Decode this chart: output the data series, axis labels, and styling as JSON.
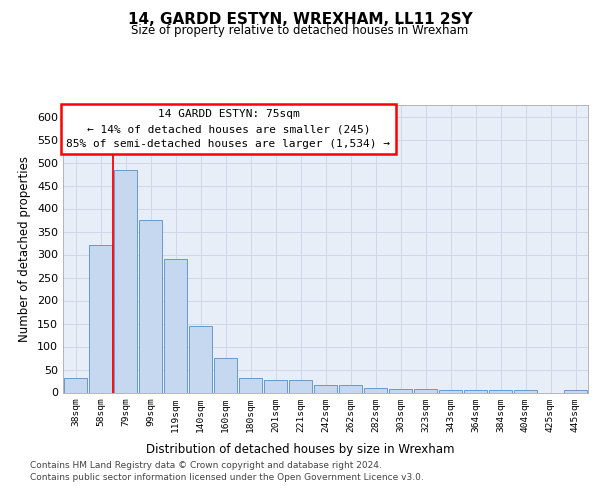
{
  "title": "14, GARDD ESTYN, WREXHAM, LL11 2SY",
  "subtitle": "Size of property relative to detached houses in Wrexham",
  "xlabel": "Distribution of detached houses by size in Wrexham",
  "ylabel": "Number of detached properties",
  "categories": [
    "38sqm",
    "58sqm",
    "79sqm",
    "99sqm",
    "119sqm",
    "140sqm",
    "160sqm",
    "180sqm",
    "201sqm",
    "221sqm",
    "242sqm",
    "262sqm",
    "282sqm",
    "303sqm",
    "323sqm",
    "343sqm",
    "364sqm",
    "384sqm",
    "404sqm",
    "425sqm",
    "445sqm"
  ],
  "values": [
    31,
    320,
    483,
    375,
    290,
    144,
    76,
    31,
    28,
    28,
    16,
    16,
    9,
    7,
    7,
    5,
    5,
    5,
    5,
    0,
    5
  ],
  "bar_color": "#c5d8f0",
  "bar_edge_color": "#6699cc",
  "grid_color": "#d0d8e8",
  "red_line_x": 1.5,
  "annotation_text": "14 GARDD ESTYN: 75sqm\n← 14% of detached houses are smaller (245)\n85% of semi-detached houses are larger (1,534) →",
  "ylim": [
    0,
    625
  ],
  "yticks": [
    0,
    50,
    100,
    150,
    200,
    250,
    300,
    350,
    400,
    450,
    500,
    550,
    600
  ],
  "footer_line1": "Contains HM Land Registry data © Crown copyright and database right 2024.",
  "footer_line2": "Contains public sector information licensed under the Open Government Licence v3.0.",
  "bg_color": "#e8eef8"
}
